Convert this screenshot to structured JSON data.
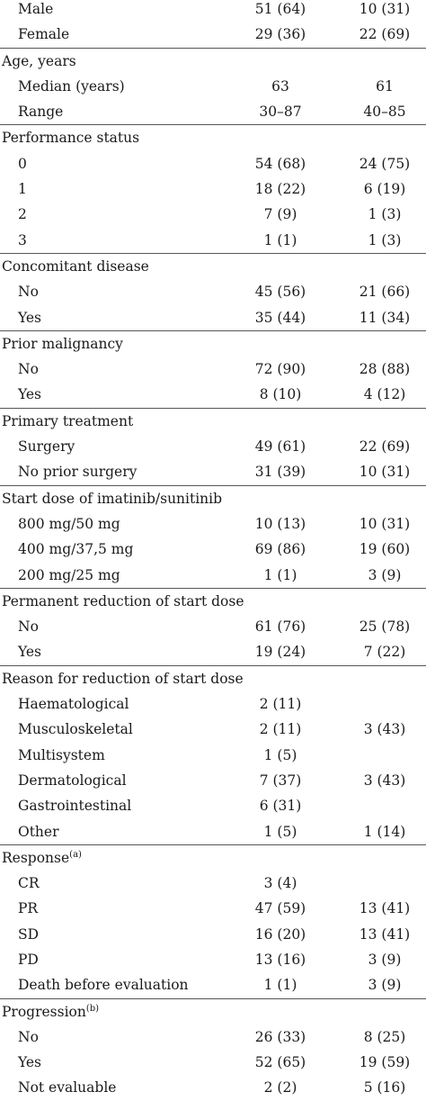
{
  "rows": [
    {
      "type": "item",
      "label": "Male",
      "c1": "51 (64)",
      "c2": "10 (31)"
    },
    {
      "type": "item",
      "label": "Female",
      "c1": "29 (36)",
      "c2": "22 (69)"
    },
    {
      "type": "header",
      "label": "Age, years"
    },
    {
      "type": "item",
      "label": "Median (years)",
      "c1": "63",
      "c2": "61"
    },
    {
      "type": "item",
      "label": "Range",
      "c1": "30–87",
      "c2": "40–85"
    },
    {
      "type": "header",
      "label": "Performance status"
    },
    {
      "type": "item",
      "label": "0",
      "c1": "54 (68)",
      "c2": "24 (75)"
    },
    {
      "type": "item",
      "label": "1",
      "c1": "18 (22)",
      "c2": "6 (19)"
    },
    {
      "type": "item",
      "label": "2",
      "c1": "7 (9)",
      "c2": "1 (3)"
    },
    {
      "type": "item",
      "label": "3",
      "c1": "1 (1)",
      "c2": "1 (3)"
    },
    {
      "type": "header",
      "label": "Concomitant disease"
    },
    {
      "type": "item",
      "label": "No",
      "c1": "45 (56)",
      "c2": "21 (66)"
    },
    {
      "type": "item",
      "label": "Yes",
      "c1": "35 (44)",
      "c2": "11 (34)"
    },
    {
      "type": "header",
      "label": "Prior malignancy"
    },
    {
      "type": "item",
      "label": "No",
      "c1": "72 (90)",
      "c2": "28 (88)"
    },
    {
      "type": "item",
      "label": "Yes",
      "c1": "8 (10)",
      "c2": "4 (12)"
    },
    {
      "type": "header",
      "label": "Primary treatment"
    },
    {
      "type": "item",
      "label": "Surgery",
      "c1": "49 (61)",
      "c2": "22 (69)"
    },
    {
      "type": "item",
      "label": "No prior surgery",
      "c1": "31 (39)",
      "c2": "10 (31)"
    },
    {
      "type": "header",
      "label": "Start dose of imatinib/sunitinib"
    },
    {
      "type": "item",
      "label": "800 mg/50 mg",
      "c1": "10 (13)",
      "c2": "10 (31)"
    },
    {
      "type": "item",
      "label": "400 mg/37,5 mg",
      "c1": "69 (86)",
      "c2": "19 (60)"
    },
    {
      "type": "item",
      "label": "200 mg/25 mg",
      "c1": "1 (1)",
      "c2": "3 (9)"
    },
    {
      "type": "header",
      "label": "Permanent reduction of start dose"
    },
    {
      "type": "item",
      "label": "No",
      "c1": "61 (76)",
      "c2": "25 (78)"
    },
    {
      "type": "item",
      "label": "Yes",
      "c1": "19 (24)",
      "c2": "7 (22)"
    },
    {
      "type": "header",
      "label": "Reason for reduction of start dose"
    },
    {
      "type": "item",
      "label": "Haematological",
      "c1": "2 (11)",
      "c2": ""
    },
    {
      "type": "item",
      "label": "Musculoskeletal",
      "c1": "2 (11)",
      "c2": "3 (43)"
    },
    {
      "type": "item",
      "label": "Multisystem",
      "c1": "1 (5)",
      "c2": ""
    },
    {
      "type": "item",
      "label": "Dermatological",
      "c1": "7 (37)",
      "c2": "3 (43)"
    },
    {
      "type": "item",
      "label": "Gastrointestinal",
      "c1": "6 (31)",
      "c2": ""
    },
    {
      "type": "item",
      "label": "Other",
      "c1": "1 (5)",
      "c2": "1 (14)"
    },
    {
      "type": "header",
      "label": "Response",
      "sup": "(a)"
    },
    {
      "type": "item",
      "label": "CR",
      "c1": "3 (4)",
      "c2": ""
    },
    {
      "type": "item",
      "label": "PR",
      "c1": "47 (59)",
      "c2": "13 (41)"
    },
    {
      "type": "item",
      "label": "SD",
      "c1": "16 (20)",
      "c2": "13 (41)"
    },
    {
      "type": "item",
      "label": "PD",
      "c1": "13 (16)",
      "c2": "3 (9)"
    },
    {
      "type": "item",
      "label": "Death before evaluation",
      "c1": "1 (1)",
      "c2": "3 (9)"
    },
    {
      "type": "header",
      "label": "Progression",
      "sup": "(b)"
    },
    {
      "type": "item",
      "label": "No",
      "c1": "26 (33)",
      "c2": "8 (25)"
    },
    {
      "type": "item",
      "label": "Yes",
      "c1": "52 (65)",
      "c2": "19 (59)"
    },
    {
      "type": "item",
      "label": "Not evaluable",
      "c1": "2 (2)",
      "c2": "5 (16)"
    }
  ]
}
